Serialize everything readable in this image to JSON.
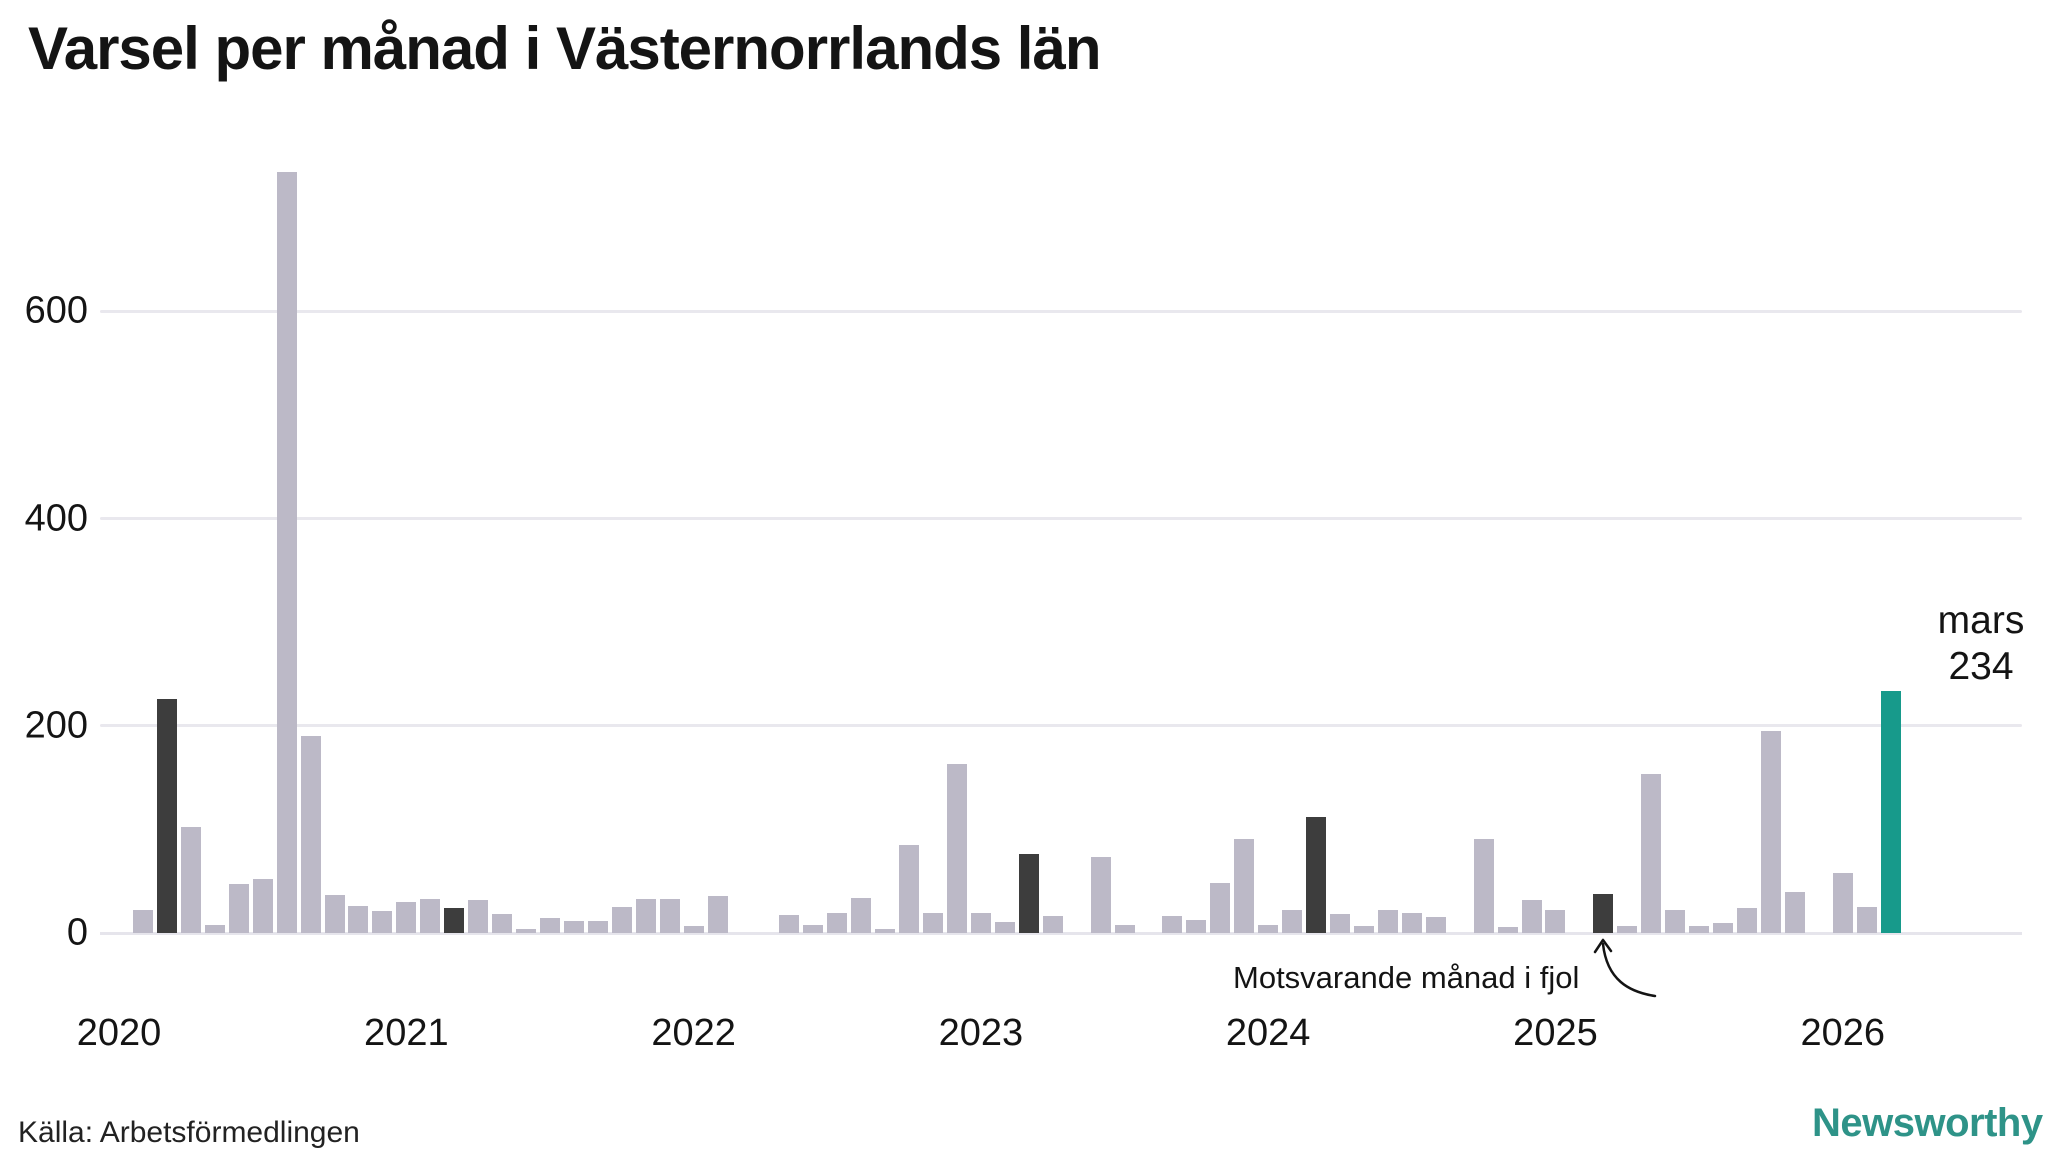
{
  "header": {
    "title": "Varsel per månad i Västernorrlands län"
  },
  "footer": {
    "source": "Källa: Arbetsförmedlingen",
    "brand": "Newsworthy"
  },
  "colors": {
    "bar_default": "#bcb9c7",
    "bar_last_year": "#3d3d3d",
    "bar_current": "#179a8b",
    "gridline": "#e9e8ee",
    "brand_teal": "#2e9388",
    "logo_box": "#35968b",
    "text": "#141414"
  },
  "chart": {
    "annotation": {
      "text": "Motsvarande månad i fjol",
      "points_to_month": "2025-03"
    },
    "current_label": {
      "month_label": "mars",
      "value_label": "234"
    }
  },
  "chart_data": {
    "type": "bar",
    "title": "Varsel per månad i Västernorrlands län",
    "xlabel": "",
    "ylabel": "",
    "ylim": [
      0,
      760
    ],
    "grid": true,
    "y_ticks": [
      0,
      200,
      400,
      600
    ],
    "year_tick_labels": [
      "2020",
      "2021",
      "2022",
      "2023",
      "2024",
      "2025",
      "2026"
    ],
    "legend": "none",
    "highlight_rule_last_year": "mars varje år (mörk stapel)",
    "highlight_rule_current": "mars 2026 (grön stapel), värde 234",
    "bars": [
      {
        "month": "2020-02",
        "label": "februari 2020",
        "value": 22,
        "kind": "default"
      },
      {
        "month": "2020-03",
        "label": "mars 2020",
        "value": 226,
        "kind": "last_year"
      },
      {
        "month": "2020-04",
        "label": "april 2020",
        "value": 102,
        "kind": "default"
      },
      {
        "month": "2020-05",
        "label": "maj 2020",
        "value": 8,
        "kind": "default"
      },
      {
        "month": "2020-06",
        "label": "juni 2020",
        "value": 47,
        "kind": "default"
      },
      {
        "month": "2020-07",
        "label": "juli 2020",
        "value": 52,
        "kind": "default"
      },
      {
        "month": "2020-08",
        "label": "augusti 2020",
        "value": 735,
        "kind": "default"
      },
      {
        "month": "2020-09",
        "label": "september 2020",
        "value": 190,
        "kind": "default"
      },
      {
        "month": "2020-10",
        "label": "oktober 2020",
        "value": 37,
        "kind": "default"
      },
      {
        "month": "2020-11",
        "label": "november 2020",
        "value": 26,
        "kind": "default"
      },
      {
        "month": "2020-12",
        "label": "december 2020",
        "value": 21,
        "kind": "default"
      },
      {
        "month": "2021-01",
        "label": "januari 2021",
        "value": 30,
        "kind": "default"
      },
      {
        "month": "2021-02",
        "label": "februari 2021",
        "value": 33,
        "kind": "default"
      },
      {
        "month": "2021-03",
        "label": "mars 2021",
        "value": 24,
        "kind": "last_year"
      },
      {
        "month": "2021-04",
        "label": "april 2021",
        "value": 32,
        "kind": "default"
      },
      {
        "month": "2021-05",
        "label": "maj 2021",
        "value": 18,
        "kind": "default"
      },
      {
        "month": "2021-06",
        "label": "juni 2021",
        "value": 4,
        "kind": "default"
      },
      {
        "month": "2021-07",
        "label": "juli 2021",
        "value": 14,
        "kind": "default"
      },
      {
        "month": "2021-08",
        "label": "augusti 2021",
        "value": 12,
        "kind": "default"
      },
      {
        "month": "2021-09",
        "label": "september 2021",
        "value": 12,
        "kind": "default"
      },
      {
        "month": "2021-10",
        "label": "oktober 2021",
        "value": 25,
        "kind": "default"
      },
      {
        "month": "2021-11",
        "label": "november 2021",
        "value": 33,
        "kind": "default"
      },
      {
        "month": "2021-12",
        "label": "december 2021",
        "value": 33,
        "kind": "default"
      },
      {
        "month": "2022-01",
        "label": "januari 2022",
        "value": 7,
        "kind": "default"
      },
      {
        "month": "2022-02",
        "label": "februari 2022",
        "value": 36,
        "kind": "default"
      },
      {
        "month": "2022-03",
        "label": "mars 2022",
        "value": 0,
        "kind": "last_year"
      },
      {
        "month": "2022-04",
        "label": "april 2022",
        "value": 0,
        "kind": "default"
      },
      {
        "month": "2022-05",
        "label": "maj 2022",
        "value": 17,
        "kind": "default"
      },
      {
        "month": "2022-06",
        "label": "juni 2022",
        "value": 8,
        "kind": "default"
      },
      {
        "month": "2022-07",
        "label": "juli 2022",
        "value": 19,
        "kind": "default"
      },
      {
        "month": "2022-08",
        "label": "augusti 2022",
        "value": 34,
        "kind": "default"
      },
      {
        "month": "2022-09",
        "label": "september 2022",
        "value": 4,
        "kind": "default"
      },
      {
        "month": "2022-10",
        "label": "oktober 2022",
        "value": 85,
        "kind": "default"
      },
      {
        "month": "2022-11",
        "label": "november 2022",
        "value": 19,
        "kind": "default"
      },
      {
        "month": "2022-12",
        "label": "december 2022",
        "value": 163,
        "kind": "default"
      },
      {
        "month": "2023-01",
        "label": "januari 2023",
        "value": 19,
        "kind": "default"
      },
      {
        "month": "2023-02",
        "label": "februari 2023",
        "value": 11,
        "kind": "default"
      },
      {
        "month": "2023-03",
        "label": "mars 2023",
        "value": 76,
        "kind": "last_year"
      },
      {
        "month": "2023-04",
        "label": "april 2023",
        "value": 16,
        "kind": "default"
      },
      {
        "month": "2023-05",
        "label": "maj 2023",
        "value": 0,
        "kind": "default"
      },
      {
        "month": "2023-06",
        "label": "juni 2023",
        "value": 73,
        "kind": "default"
      },
      {
        "month": "2023-07",
        "label": "juli 2023",
        "value": 8,
        "kind": "default"
      },
      {
        "month": "2023-08",
        "label": "augusti 2023",
        "value": 0,
        "kind": "default"
      },
      {
        "month": "2023-09",
        "label": "september 2023",
        "value": 16,
        "kind": "default"
      },
      {
        "month": "2023-10",
        "label": "oktober 2023",
        "value": 13,
        "kind": "default"
      },
      {
        "month": "2023-11",
        "label": "november 2023",
        "value": 48,
        "kind": "default"
      },
      {
        "month": "2023-12",
        "label": "december 2023",
        "value": 91,
        "kind": "default"
      },
      {
        "month": "2024-01",
        "label": "januari 2024",
        "value": 8,
        "kind": "default"
      },
      {
        "month": "2024-02",
        "label": "februari 2024",
        "value": 22,
        "kind": "default"
      },
      {
        "month": "2024-03",
        "label": "mars 2024",
        "value": 112,
        "kind": "last_year"
      },
      {
        "month": "2024-04",
        "label": "april 2024",
        "value": 18,
        "kind": "default"
      },
      {
        "month": "2024-05",
        "label": "maj 2024",
        "value": 7,
        "kind": "default"
      },
      {
        "month": "2024-06",
        "label": "juni 2024",
        "value": 22,
        "kind": "default"
      },
      {
        "month": "2024-07",
        "label": "juli 2024",
        "value": 19,
        "kind": "default"
      },
      {
        "month": "2024-08",
        "label": "augusti 2024",
        "value": 15,
        "kind": "default"
      },
      {
        "month": "2024-09",
        "label": "september 2024",
        "value": 0,
        "kind": "default"
      },
      {
        "month": "2024-10",
        "label": "oktober 2024",
        "value": 91,
        "kind": "default"
      },
      {
        "month": "2024-11",
        "label": "november 2024",
        "value": 6,
        "kind": "default"
      },
      {
        "month": "2024-12",
        "label": "december 2024",
        "value": 32,
        "kind": "default"
      },
      {
        "month": "2025-01",
        "label": "januari 2025",
        "value": 22,
        "kind": "default"
      },
      {
        "month": "2025-02",
        "label": "februari 2025",
        "value": 0,
        "kind": "default"
      },
      {
        "month": "2025-03",
        "label": "mars 2025",
        "value": 38,
        "kind": "last_year"
      },
      {
        "month": "2025-04",
        "label": "april 2025",
        "value": 7,
        "kind": "default"
      },
      {
        "month": "2025-05",
        "label": "maj 2025",
        "value": 153,
        "kind": "default"
      },
      {
        "month": "2025-06",
        "label": "juni 2025",
        "value": 22,
        "kind": "default"
      },
      {
        "month": "2025-07",
        "label": "juli 2025",
        "value": 7,
        "kind": "default"
      },
      {
        "month": "2025-08",
        "label": "augusti 2025",
        "value": 10,
        "kind": "default"
      },
      {
        "month": "2025-09",
        "label": "september 2025",
        "value": 24,
        "kind": "default"
      },
      {
        "month": "2025-10",
        "label": "oktober 2025",
        "value": 195,
        "kind": "default"
      },
      {
        "month": "2025-11",
        "label": "november 2025",
        "value": 40,
        "kind": "default"
      },
      {
        "month": "2025-12",
        "label": "december 2025",
        "value": 0,
        "kind": "default"
      },
      {
        "month": "2026-01",
        "label": "januari 2026",
        "value": 58,
        "kind": "default"
      },
      {
        "month": "2026-02",
        "label": "februari 2026",
        "value": 25,
        "kind": "default"
      },
      {
        "month": "2026-03",
        "label": "mars 2026",
        "value": 234,
        "kind": "current"
      }
    ]
  }
}
